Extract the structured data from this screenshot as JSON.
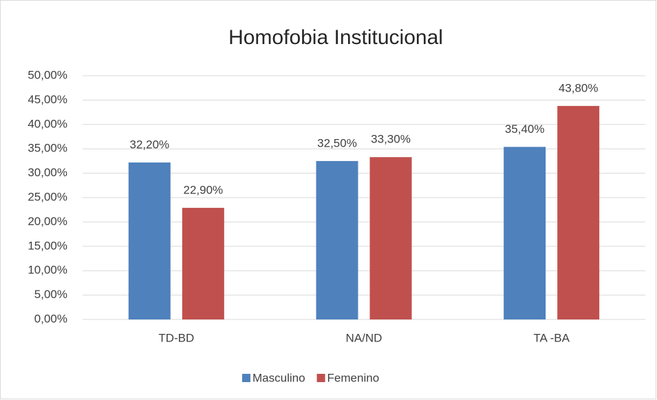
{
  "chart_data": {
    "type": "bar",
    "title": "Homofobia Institucional",
    "categories": [
      "TD-BD",
      "NA/ND",
      "TA -BA"
    ],
    "series": [
      {
        "name": "Masculino",
        "color": "#4f81bd",
        "values": [
          32.2,
          32.5,
          35.4
        ],
        "value_labels": [
          "32,20%",
          "32,50%",
          "35,40%"
        ]
      },
      {
        "name": "Femenino",
        "color": "#c0504d",
        "values": [
          22.9,
          33.3,
          43.8
        ],
        "value_labels": [
          "22,90%",
          "33,30%",
          "43,80%"
        ]
      }
    ],
    "ylim": [
      0,
      50
    ],
    "yticks": [
      {
        "value": 0,
        "label": "0,00%"
      },
      {
        "value": 5,
        "label": "5,00%"
      },
      {
        "value": 10,
        "label": "10,00%"
      },
      {
        "value": 15,
        "label": "15,00%"
      },
      {
        "value": 20,
        "label": "20,00%"
      },
      {
        "value": 25,
        "label": "25,00%"
      },
      {
        "value": 30,
        "label": "30,00%"
      },
      {
        "value": 35,
        "label": "35,00%"
      },
      {
        "value": 40,
        "label": "40,00%"
      },
      {
        "value": 45,
        "label": "45,00%"
      },
      {
        "value": 50,
        "label": "50,00%"
      }
    ],
    "grid": true,
    "legend": "bottom"
  }
}
